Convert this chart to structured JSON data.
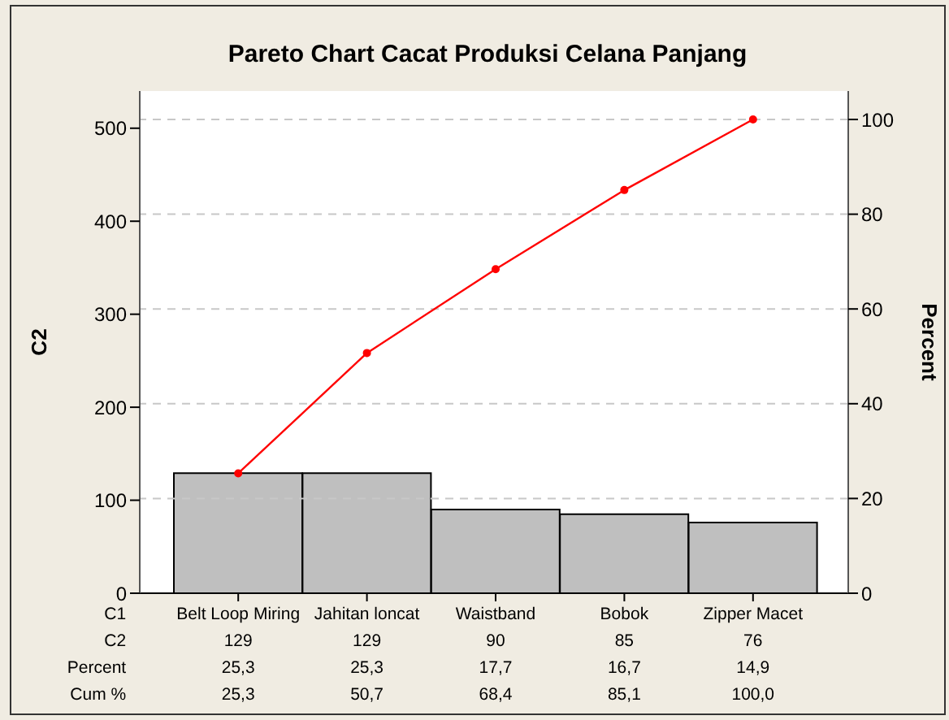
{
  "chart_data": {
    "type": "bar",
    "title": "Pareto Chart Cacat Produksi Celana Panjang",
    "xlabel": "C1",
    "ylabel": "C2",
    "y2label": "Percent",
    "categories": [
      "Belt Loop Miring",
      "Jahitan loncat",
      "Waistband",
      "Bobok",
      "Zipper Macet"
    ],
    "series": [
      {
        "name": "C2",
        "color": "#bfbfbf",
        "values": [
          129,
          129,
          90,
          85,
          76
        ],
        "value_labels": [
          "129",
          "129",
          "90",
          "85",
          "76"
        ]
      },
      {
        "type": "line",
        "axis": "y2",
        "color": "#ff0000",
        "values": [
          25.3,
          50.7,
          68.4,
          85.1,
          100.0
        ],
        "value_labels": [
          "25,3",
          "50,7",
          "68,4",
          "85,1",
          "100,0"
        ]
      }
    ],
    "annotations": [
      "Percent",
      "25,3",
      "25,3",
      "17,7",
      "16,7",
      "14,9",
      "Cum %"
    ],
    "ylim": [
      0,
      540
    ],
    "yticks": [
      0,
      100,
      200,
      300,
      400,
      500
    ],
    "y2lim": [
      0,
      106
    ],
    "y2ticks": [
      0,
      20,
      40,
      60,
      80,
      100
    ],
    "grid": "y",
    "marker": "circle",
    "line_style": "solid"
  }
}
